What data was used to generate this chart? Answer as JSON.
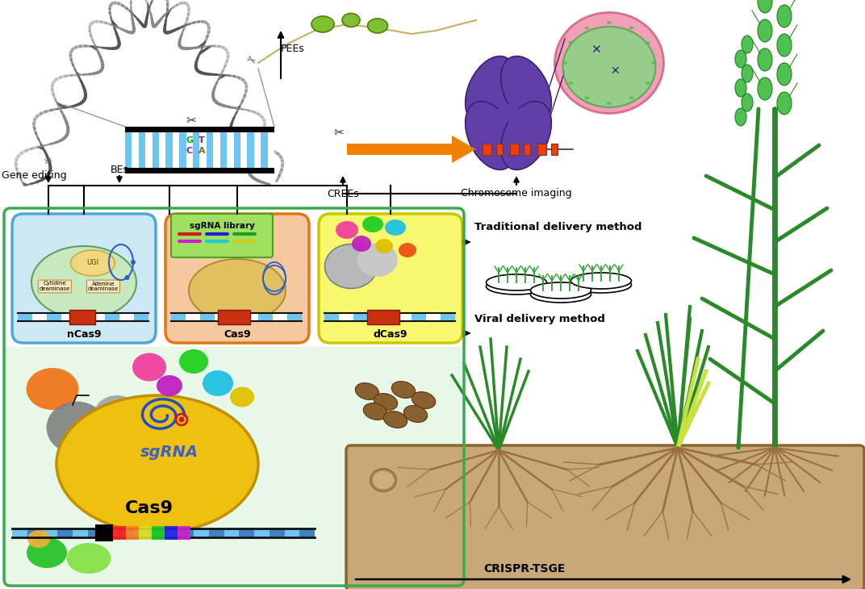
{
  "bg_color": "#ffffff",
  "labels": {
    "gene_editing": "Gene editing",
    "BEs": "BEs",
    "PEEs": "PEEs",
    "CREEs": "CREEs",
    "chromosome_imaging": "Chromosome imaging",
    "nCas9": "nCas9",
    "Cas9_orange": "Cas9",
    "dCas9": "dCas9",
    "sgRNA": "sgRNA",
    "UGI": "UGI",
    "cytidine_deaminase": "Cytidine\ndeaminase",
    "adenine_deaminase": "Adenine\ndeaminase",
    "sgRNA_library": "sgRNA library",
    "traditional_delivery": "Traditional delivery method",
    "viral_delivery": "Viral delivery method",
    "CRISPR_TSGE": "CRISPR-TSGE",
    "Cas9_large": "Cas9",
    "GT": "G  T",
    "CA": "C  A"
  },
  "colors": {
    "blue_box_fill": "#cce8f4",
    "blue_box_edge": "#4da8d8",
    "orange_box_fill": "#f5c8a0",
    "orange_box_edge": "#e07818",
    "yellow_box_fill": "#f8f870",
    "yellow_box_edge": "#c8c800",
    "green_border": "#3aaa50",
    "light_green_bg": "#e8f8e8",
    "brown_fill": "#c8a878",
    "brown_edge": "#8b6530",
    "dna_blue1": "#6ec6f0",
    "dna_blue2": "#ffffff",
    "dna_black": "#111111",
    "orange_arrow": "#f08000",
    "orange_rect": "#e84010",
    "chrom_purple": "#6040a8",
    "nucleus_pink": "#f090a8",
    "nucleus_green": "#80d880",
    "wheat_green": "#2a8a2a",
    "wheat_light": "#90d050",
    "seed_brown": "#8b6030",
    "root_brown": "#9b7040",
    "cas9_gold": "#f0c010",
    "sgRNA_color": "#4060c0",
    "pink_protein": "#f040a0",
    "green_protein": "#20d020",
    "cyan_protein": "#20c0e0",
    "purple_protein": "#c020c0",
    "yellow_protein": "#e0c000",
    "orange_protein": "#f07010",
    "gray_protein": "#909090",
    "petri_green": "#30a030"
  }
}
